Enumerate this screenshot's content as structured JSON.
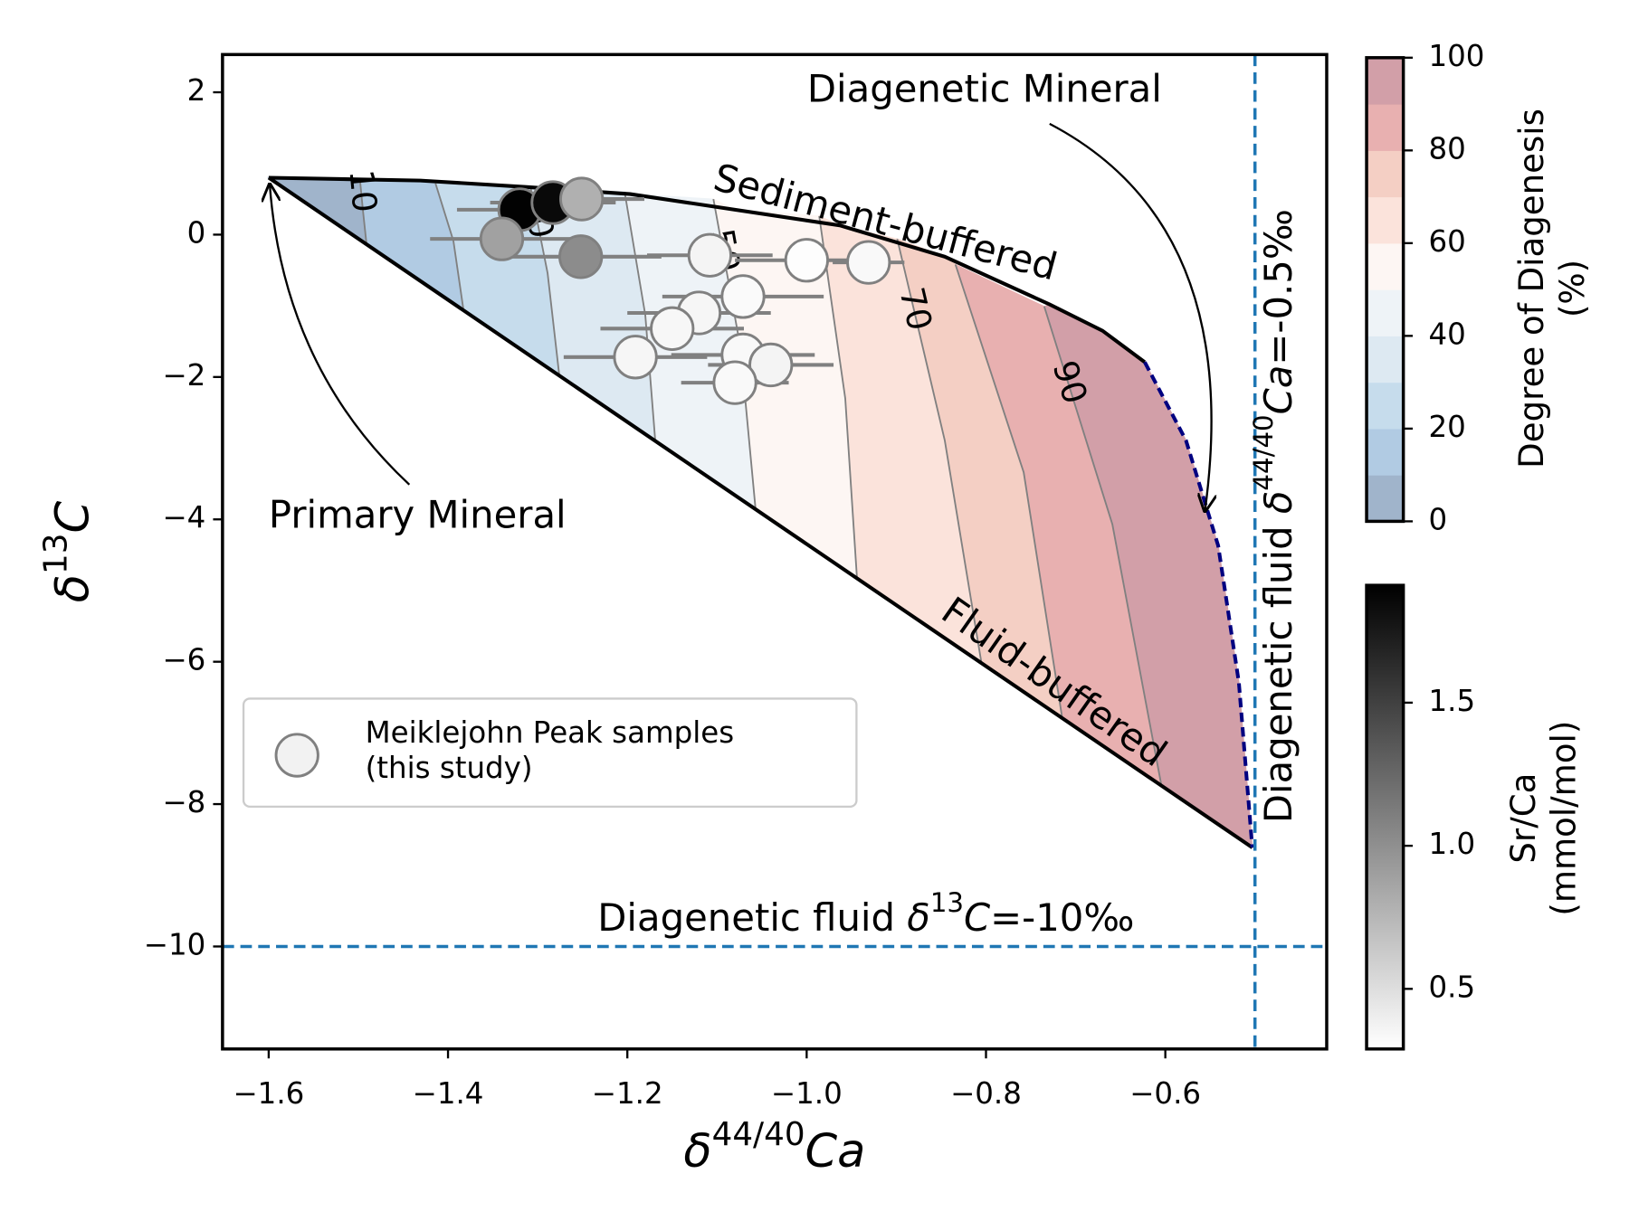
{
  "chart_data": {
    "type": "scatter",
    "x_label": [
      "δ",
      "44/40",
      "Ca"
    ],
    "y_label": [
      "δ",
      "13",
      "C"
    ],
    "xlim": [
      -1.6515,
      -0.42
    ],
    "ylim": [
      -11.44,
      2.53
    ],
    "xticks": [
      {
        "value": -1.6,
        "label": "−1.6"
      },
      {
        "value": -1.4,
        "label": "−1.4"
      },
      {
        "value": -1.2,
        "label": "−1.2"
      },
      {
        "value": -1.0,
        "label": "−1.0"
      },
      {
        "value": -0.8,
        "label": "−0.8"
      },
      {
        "value": -0.6,
        "label": "−0.6"
      }
    ],
    "yticks": [
      {
        "value": -10,
        "label": "−10"
      },
      {
        "value": -8,
        "label": "−8"
      },
      {
        "value": -6,
        "label": "−6"
      },
      {
        "value": -4,
        "label": "−4"
      },
      {
        "value": -2,
        "label": "−2"
      },
      0,
      2
    ],
    "series": [
      {
        "name": "Meiklejohn Peak samples\n(this study)",
        "edgecolor": "#808080",
        "errcolor": "#808080",
        "x": [
          -1.32,
          -1.283,
          -1.251,
          -1.34,
          -1.252,
          -1.108,
          -1.0,
          -0.931,
          -1.071,
          -1.12,
          -1.15,
          -1.071,
          -1.04,
          -1.191,
          -1.08
        ],
        "y": [
          0.35,
          0.45,
          0.5,
          -0.06,
          -0.31,
          -0.29,
          -0.36,
          -0.39,
          -0.87,
          -1.1,
          -1.32,
          -1.69,
          -1.83,
          -1.72,
          -2.08
        ],
        "xerr": [
          0.07,
          0.07,
          0.07,
          0.08,
          0.09,
          0.07,
          0.08,
          0.04,
          0.09,
          0.08,
          0.08,
          0.08,
          0.07,
          0.08,
          0.06
        ],
        "sr_ca": [
          1.9,
          1.85,
          0.79,
          0.89,
          1.02,
          0.36,
          0.3,
          0.33,
          0.32,
          0.35,
          0.34,
          0.33,
          0.36,
          0.35,
          0.33
        ]
      }
    ],
    "sediment_buffered": {
      "name": "Sediment-buffered",
      "color": "#000000",
      "x": [
        -1.6,
        -1.431,
        -1.314,
        -1.197,
        -1.08,
        -0.963,
        -0.846,
        -0.729,
        -0.67,
        -0.623
      ],
      "y": [
        0.8,
        0.76,
        0.67,
        0.57,
        0.35,
        0.13,
        -0.31,
        -0.98,
        -1.35,
        -1.79
      ]
    },
    "fluid_buffered": {
      "name": "Fluid-buffered",
      "color": "#000000",
      "x": [
        -1.6,
        -0.503
      ],
      "y": [
        0.8,
        -8.61
      ]
    },
    "diagenetic_end": {
      "color": "#000080",
      "x": [
        -0.623,
        -0.577,
        -0.541,
        -0.518,
        -0.503
      ],
      "y": [
        -1.79,
        -2.89,
        -4.37,
        -6.29,
        -8.61
      ]
    },
    "contours": [
      {
        "level": 10,
        "x": [
          -1.498,
          -1.495,
          -1.491
        ],
        "y": [
          0.75,
          0.35,
          -0.12
        ]
      },
      {
        "level": 20,
        "x": [
          -1.414,
          -1.394,
          -1.383
        ],
        "y": [
          0.72,
          -0.09,
          -1.04
        ]
      },
      {
        "level": 30,
        "x": [
          -1.308,
          -1.289,
          -1.276
        ],
        "y": [
          0.67,
          -0.54,
          -1.97
        ]
      },
      {
        "level": 40,
        "x": [
          -1.203,
          -1.18,
          -1.169
        ],
        "y": [
          0.6,
          -1.13,
          -2.88
        ]
      },
      {
        "level": 50,
        "x": [
          -1.104,
          -1.074,
          -1.057
        ],
        "y": [
          0.5,
          -1.57,
          -3.85
        ]
      },
      {
        "level": 60,
        "x": [
          -0.986,
          -0.957,
          -0.944
        ],
        "y": [
          0.26,
          -2.3,
          -4.81
        ]
      },
      {
        "level": 70,
        "x": [
          -0.899,
          -0.846,
          -0.805
        ],
        "y": [
          -0.06,
          -2.89,
          -6.02
        ]
      },
      {
        "level": 80,
        "x": [
          -0.834,
          -0.758,
          -0.715
        ],
        "y": [
          -0.42,
          -3.34,
          -6.79
        ]
      },
      {
        "level": 90,
        "x": [
          -0.735,
          -0.659,
          -0.604
        ],
        "y": [
          -1.01,
          -4.07,
          -7.76
        ]
      }
    ],
    "contour_color": "#808080",
    "contour_labels": [
      10,
      30,
      50,
      70,
      90
    ],
    "hline": {
      "y": -10,
      "color": "#1f77b4",
      "label": [
        "Diagenetic fluid ",
        "δ",
        "13",
        "C",
        "=-10‰"
      ]
    },
    "vline": {
      "x": -0.5,
      "color": "#1f77b4",
      "label": [
        "Diagenetic fluid ",
        "δ",
        "44/40",
        "Ca",
        "=-0.5‰"
      ]
    },
    "annotations": [
      "Primary Mineral",
      "Diagenetic Mineral"
    ],
    "colorbars": [
      {
        "label": "Degree of Diagenesis\n(%)",
        "levels": [
          0,
          10,
          20,
          30,
          40,
          50,
          60,
          70,
          80,
          90,
          100
        ],
        "ticks": [
          0,
          20,
          40,
          60,
          80,
          100
        ],
        "colors": [
          "#a0b4cb",
          "#b1cbe3",
          "#c6dcec",
          "#dde9f2",
          "#eef3f7",
          "#fdf6f3",
          "#fbe3db",
          "#f4cfc4",
          "#e8b0b0",
          "#d29fa8"
        ]
      },
      {
        "label": "Sr/Ca\n(mmol/mol)",
        "lim": [
          0.29,
          1.91
        ],
        "ticks": [
          0.5,
          {
            "value": 1.0,
            "label": "1.0"
          },
          1.5
        ],
        "colors": [
          "#ffffff",
          "#000000"
        ]
      }
    ]
  }
}
